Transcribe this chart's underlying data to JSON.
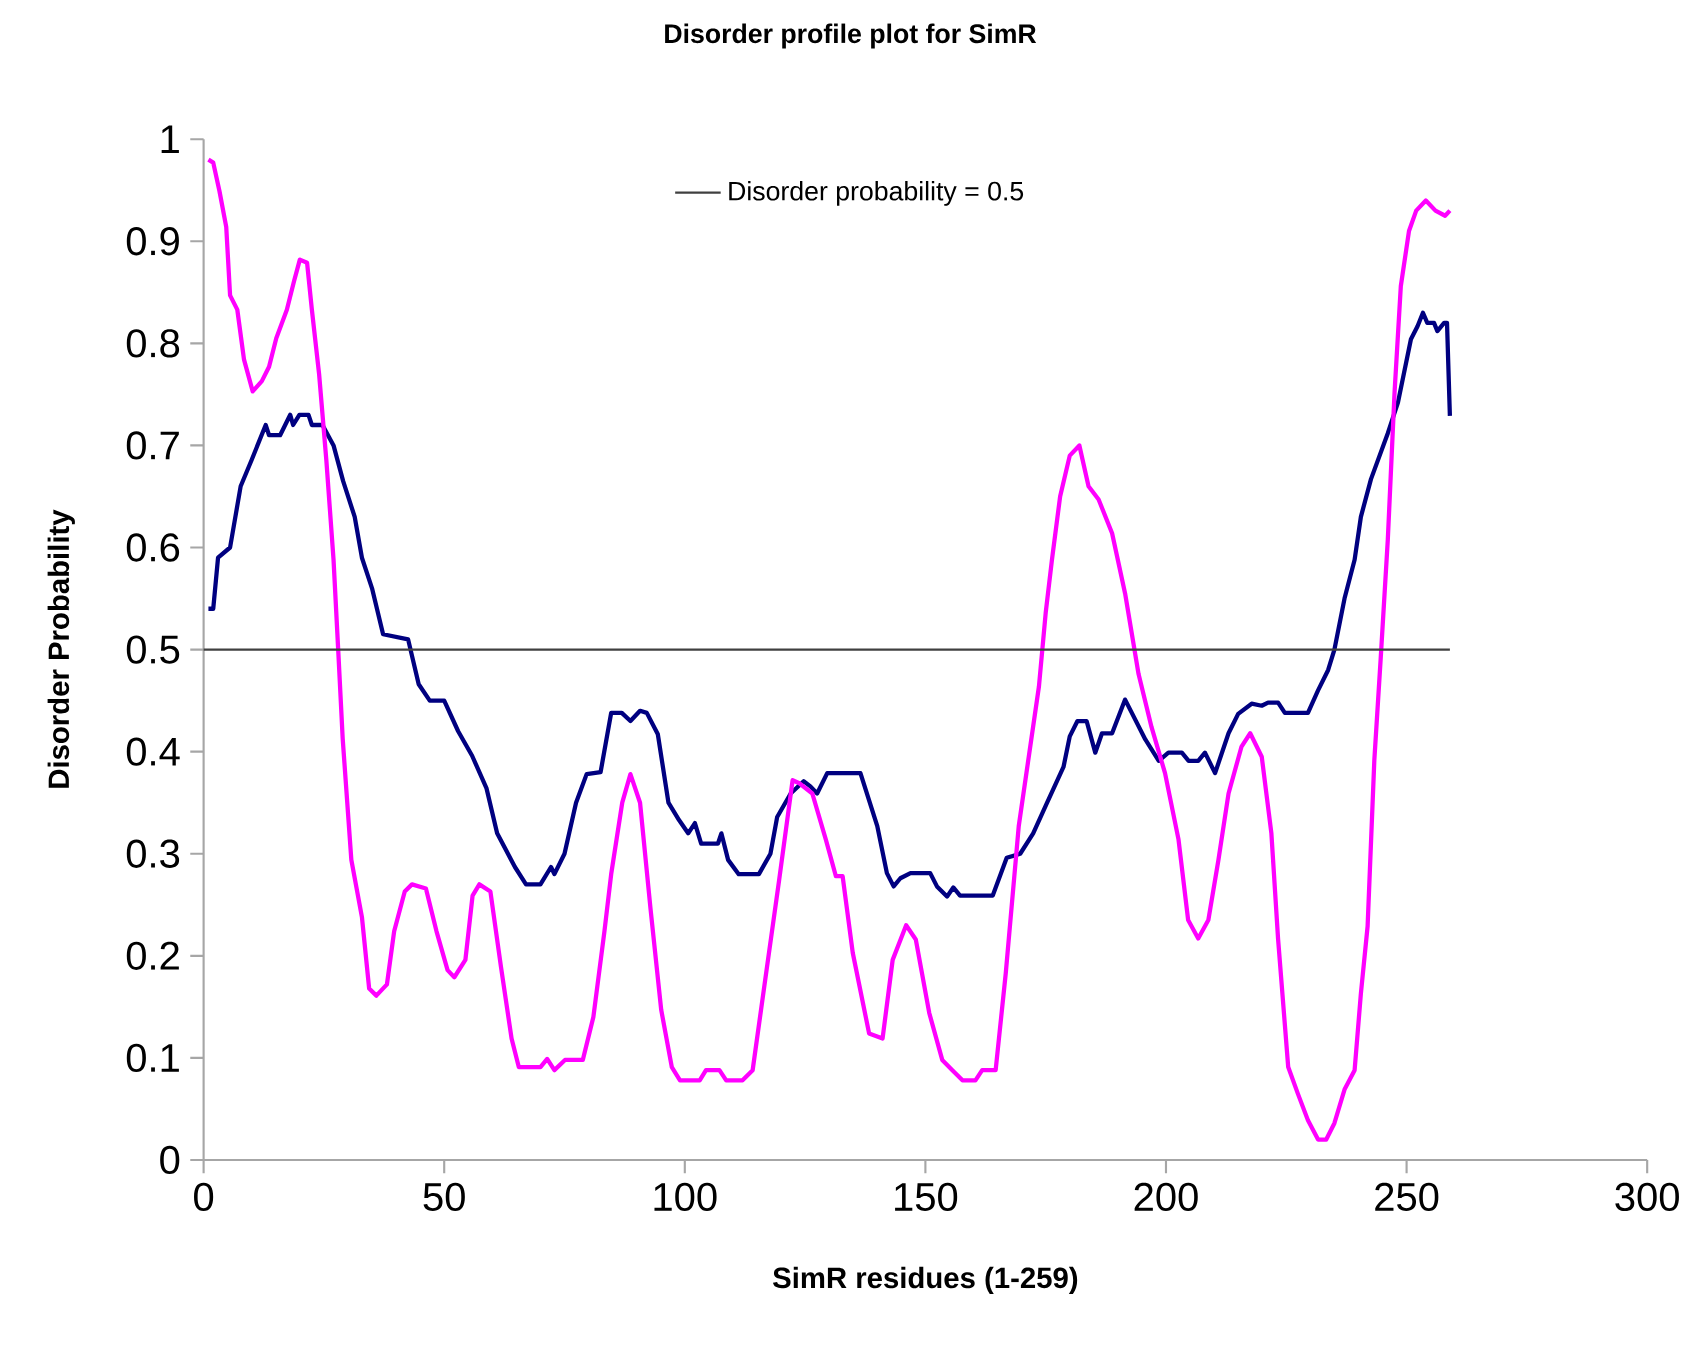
{
  "chart_data": {
    "type": "line",
    "title": "Disorder profile plot for SimR",
    "xlabel": "SimR residues (1-259)",
    "ylabel": "Disorder Probability",
    "xlim": [
      0,
      300
    ],
    "xticks": [
      0,
      50,
      100,
      150,
      200,
      250,
      300
    ],
    "ylim": [
      0,
      1
    ],
    "yticks": [
      0,
      0.1,
      0.2,
      0.3,
      0.4,
      0.5,
      0.6,
      0.7,
      0.8,
      0.9,
      1
    ],
    "grid": false,
    "legend": "top",
    "ref_lines": [
      {
        "axis": "y",
        "value": 0.5,
        "label": "Disorder probability = 0.5",
        "color": "#404040"
      }
    ],
    "series": [
      {
        "color": "#000080",
        "x": [
          1,
          2,
          3,
          5.5,
          7.7,
          10,
          12.9,
          13.6,
          15.9,
          18,
          18.6,
          19.9,
          21.8,
          22.5,
          24.7,
          27,
          29,
          31.4,
          32.9,
          35,
          37.3,
          42.5,
          44.7,
          47,
          50,
          52.9,
          55.8,
          58.8,
          61,
          64.7,
          67,
          70,
          72.2,
          72.9,
          75,
          77.4,
          79.6,
          82.5,
          84.7,
          86.9,
          88.7,
          90.7,
          92.1,
          94.4,
          96.6,
          98.8,
          100.7,
          102.1,
          103.4,
          106.9,
          107.6,
          109,
          111.2,
          115.4,
          117.8,
          119.2,
          122,
          124.7,
          126.1,
          127.5,
          129.6,
          136.5,
          140,
          142,
          143.4,
          144.8,
          146.9,
          151,
          152.4,
          154.5,
          155.8,
          157.2,
          164,
          166.9,
          169.7,
          172.4,
          175.2,
          178.7,
          180,
          181.6,
          183.5,
          185.3,
          186.7,
          188.8,
          191.5,
          195.7,
          198.5,
          200.5,
          203.3,
          204.7,
          206.7,
          208.1,
          210.2,
          213,
          215,
          217.8,
          219.9,
          221.2,
          223.3,
          224.7,
          229.5,
          231.6,
          233.7,
          235,
          237.1,
          239.2,
          240.5,
          242.6,
          246.1,
          248.2,
          250.9,
          252.3,
          253.4,
          254.3,
          255.7,
          256.4,
          257.8,
          258.4,
          259
        ],
        "values": [
          0.54,
          0.54,
          0.59,
          0.6,
          0.66,
          0.686,
          0.72,
          0.71,
          0.71,
          0.73,
          0.72,
          0.73,
          0.73,
          0.72,
          0.72,
          0.7,
          0.665,
          0.63,
          0.59,
          0.56,
          0.515,
          0.51,
          0.466,
          0.45,
          0.45,
          0.42,
          0.396,
          0.364,
          0.32,
          0.287,
          0.27,
          0.27,
          0.287,
          0.28,
          0.3,
          0.35,
          0.378,
          0.38,
          0.438,
          0.438,
          0.43,
          0.44,
          0.438,
          0.417,
          0.35,
          0.333,
          0.32,
          0.33,
          0.31,
          0.31,
          0.32,
          0.294,
          0.28,
          0.28,
          0.3,
          0.336,
          0.359,
          0.371,
          0.366,
          0.359,
          0.379,
          0.379,
          0.327,
          0.281,
          0.268,
          0.276,
          0.281,
          0.281,
          0.268,
          0.258,
          0.267,
          0.259,
          0.259,
          0.296,
          0.3,
          0.32,
          0.349,
          0.385,
          0.415,
          0.43,
          0.43,
          0.399,
          0.418,
          0.418,
          0.451,
          0.412,
          0.391,
          0.399,
          0.399,
          0.391,
          0.391,
          0.399,
          0.379,
          0.418,
          0.437,
          0.447,
          0.445,
          0.448,
          0.448,
          0.438,
          0.438,
          0.46,
          0.48,
          0.5,
          0.55,
          0.588,
          0.63,
          0.667,
          0.712,
          0.742,
          0.804,
          0.817,
          0.83,
          0.82,
          0.82,
          0.812,
          0.82,
          0.82,
          0.729
        ]
      },
      {
        "color": "#ff00ff",
        "x": [
          1,
          2,
          3.3,
          4.7,
          5.5,
          7,
          8.4,
          10.2,
          12.1,
          13.6,
          15.1,
          17.3,
          18.8,
          20,
          21.5,
          22.5,
          24,
          25.5,
          27,
          28,
          28.9,
          30.7,
          32.9,
          34.4,
          35.9,
          38.1,
          39.6,
          41.8,
          43.3,
          46.2,
          48.4,
          50.7,
          52.1,
          54.4,
          55.9,
          57.3,
          59.6,
          61.8,
          64,
          65.5,
          70,
          71.4,
          72.9,
          75.1,
          78.8,
          81,
          83.3,
          84.7,
          87,
          88.7,
          90.7,
          92.9,
          95.1,
          97.3,
          99,
          103.1,
          104.4,
          107.2,
          108.6,
          112,
          114.1,
          116.9,
          119.6,
          122.4,
          123.8,
          126.5,
          129.3,
          131.4,
          132.8,
          134.9,
          138.3,
          141.1,
          143.2,
          146,
          148,
          150.8,
          153.5,
          155.6,
          157.7,
          160.4,
          161.8,
          164.6,
          166.7,
          169.4,
          173.6,
          175,
          176.3,
          178,
          180,
          182,
          183.9,
          186,
          188.8,
          191.5,
          194.3,
          197,
          199.8,
          202.6,
          204.6,
          206.7,
          208.8,
          210.9,
          213,
          215.7,
          217.5,
          219.9,
          221.9,
          223.3,
          225.4,
          227.4,
          229.5,
          231.6,
          233.3,
          235,
          237.1,
          239.2,
          240.5,
          241.9,
          243.3,
          244.6,
          246.1,
          247.5,
          248.8,
          250.5,
          252,
          254,
          256,
          258,
          259
        ],
        "values": [
          0.98,
          0.977,
          0.949,
          0.914,
          0.847,
          0.833,
          0.784,
          0.753,
          0.763,
          0.777,
          0.805,
          0.833,
          0.861,
          0.882,
          0.879,
          0.833,
          0.77,
          0.686,
          0.588,
          0.497,
          0.413,
          0.294,
          0.238,
          0.168,
          0.161,
          0.172,
          0.224,
          0.263,
          0.27,
          0.266,
          0.224,
          0.186,
          0.179,
          0.196,
          0.259,
          0.27,
          0.263,
          0.189,
          0.119,
          0.091,
          0.091,
          0.099,
          0.088,
          0.098,
          0.098,
          0.14,
          0.224,
          0.28,
          0.35,
          0.378,
          0.35,
          0.245,
          0.147,
          0.091,
          0.078,
          0.078,
          0.088,
          0.088,
          0.078,
          0.078,
          0.088,
          0.183,
          0.274,
          0.372,
          0.369,
          0.359,
          0.314,
          0.278,
          0.278,
          0.203,
          0.124,
          0.119,
          0.196,
          0.23,
          0.216,
          0.144,
          0.098,
          0.088,
          0.078,
          0.078,
          0.088,
          0.088,
          0.183,
          0.327,
          0.464,
          0.536,
          0.588,
          0.65,
          0.69,
          0.7,
          0.66,
          0.647,
          0.614,
          0.555,
          0.476,
          0.424,
          0.379,
          0.314,
          0.235,
          0.217,
          0.235,
          0.294,
          0.359,
          0.405,
          0.418,
          0.395,
          0.32,
          0.216,
          0.091,
          0.065,
          0.039,
          0.02,
          0.02,
          0.036,
          0.069,
          0.088,
          0.163,
          0.229,
          0.392,
          0.49,
          0.608,
          0.752,
          0.856,
          0.91,
          0.93,
          0.94,
          0.93,
          0.925,
          0.93
        ]
      }
    ]
  }
}
